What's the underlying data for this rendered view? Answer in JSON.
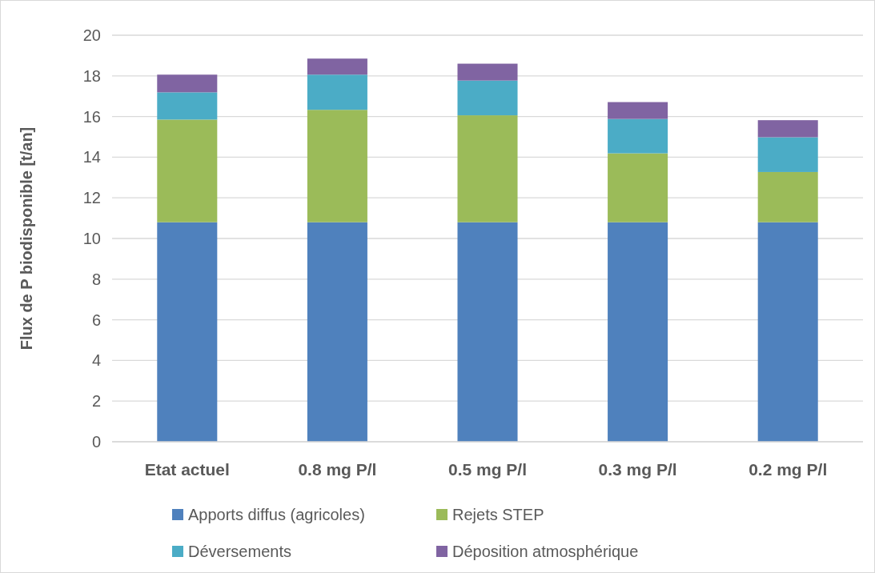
{
  "chart_data": {
    "type": "bar",
    "stacked": true,
    "ylabel": "Flux de P biodisponible [t/an]",
    "categories": [
      "Etat actuel",
      "0.8 mg P/l",
      "0.5 mg P/l",
      "0.3 mg P/l",
      "0.2 mg P/l"
    ],
    "series": [
      {
        "name": "Apports diffus (agricoles)",
        "color": "#4f81bd",
        "values": [
          10.8,
          10.8,
          10.8,
          10.8,
          10.8
        ]
      },
      {
        "name": "Rejets STEP",
        "color": "#9bbb59",
        "values": [
          5.05,
          5.53,
          5.26,
          3.39,
          2.47
        ]
      },
      {
        "name": "Déversements",
        "color": "#4bacc6",
        "values": [
          1.34,
          1.73,
          1.71,
          1.69,
          1.71
        ]
      },
      {
        "name": "Déposition atmosphérique",
        "color": "#8064a2",
        "values": [
          0.87,
          0.79,
          0.83,
          0.83,
          0.84
        ]
      }
    ],
    "ylim": [
      0,
      20
    ],
    "yticks": [
      0,
      2,
      4,
      6,
      8,
      10,
      12,
      14,
      16,
      18,
      20
    ],
    "grid": "y",
    "legend": "bottom"
  }
}
